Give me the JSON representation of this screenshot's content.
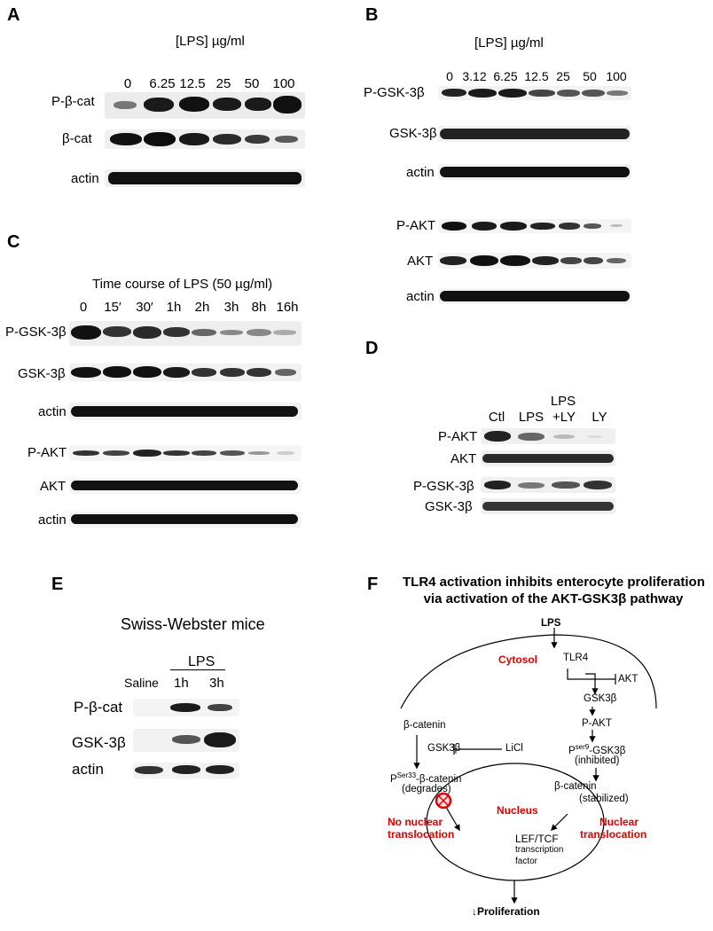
{
  "panelA": {
    "letter": "A",
    "header": "[LPS] µg/ml",
    "lanes": [
      "0",
      "6.25",
      "12.5",
      "25",
      "50",
      "100"
    ],
    "rows": [
      "P-β-cat",
      "β-cat",
      "actin"
    ]
  },
  "panelB": {
    "letter": "B",
    "header": "[LPS] µg/ml",
    "lanes": [
      "0",
      "3.12",
      "6.25",
      "12.5",
      "25",
      "50",
      "100"
    ],
    "rows": [
      "P-GSK-3β",
      "GSK-3β",
      "actin",
      "P-AKT",
      "AKT",
      "actin"
    ]
  },
  "panelC": {
    "letter": "C",
    "header": "Time course of LPS (50 µg/ml)",
    "lanes": [
      "0",
      "15′",
      "30′",
      "1h",
      "2h",
      "3h",
      "8h",
      "16h"
    ],
    "rows": [
      "P-GSK-3β",
      "GSK-3β",
      "actin",
      "P-AKT",
      "AKT",
      "actin"
    ]
  },
  "panelD": {
    "letter": "D",
    "lanes": [
      "Ctl",
      "LPS",
      "LPS",
      "+LY",
      "LY"
    ],
    "rows": [
      "P-AKT",
      "AKT",
      "P-GSK-3β",
      "GSK-3β"
    ]
  },
  "panelE": {
    "letter": "E",
    "title": "Swiss-Webster mice",
    "group": "LPS",
    "lanes": [
      "Saline",
      "1h",
      "3h"
    ],
    "rows": [
      "P-β-cat",
      "GSK-3β",
      "actin"
    ]
  },
  "panelF": {
    "letter": "F",
    "title1": "TLR4 activation inhibits enterocyte proliferation",
    "title2": "via activation of the AKT-GSK3β pathway",
    "lps": "LPS",
    "cytosol": "Cytosol",
    "tlr4": "TLR4",
    "akt": "AKT",
    "gsk3b_right": "GSK3β",
    "pakt": "P-AKT",
    "p_prefix": "P",
    "ser9": "ser9",
    "pgsk_suffix": "-GSK3β",
    "inhibited": "(inhibited)",
    "bcat_left": "β-catenin",
    "gsk3b_left": "GSK3β",
    "licl": "LiCl",
    "ser33": "Ser33",
    "pbcat_suffix": "-β-catenin",
    "degrades": "(degrades)",
    "bcat_right": "β-catenin",
    "stabilized": "(stabilized)",
    "nucleus": "Nucleus",
    "no_nuclear1": "No nuclear",
    "no_nuclear2": "translocation",
    "nuclear1": "Nuclear",
    "nuclear2": "translocation",
    "leftcf": "LEF/TCF",
    "tf1": "transcription",
    "tf2": "factor",
    "proliferation": "↓Proliferation"
  }
}
